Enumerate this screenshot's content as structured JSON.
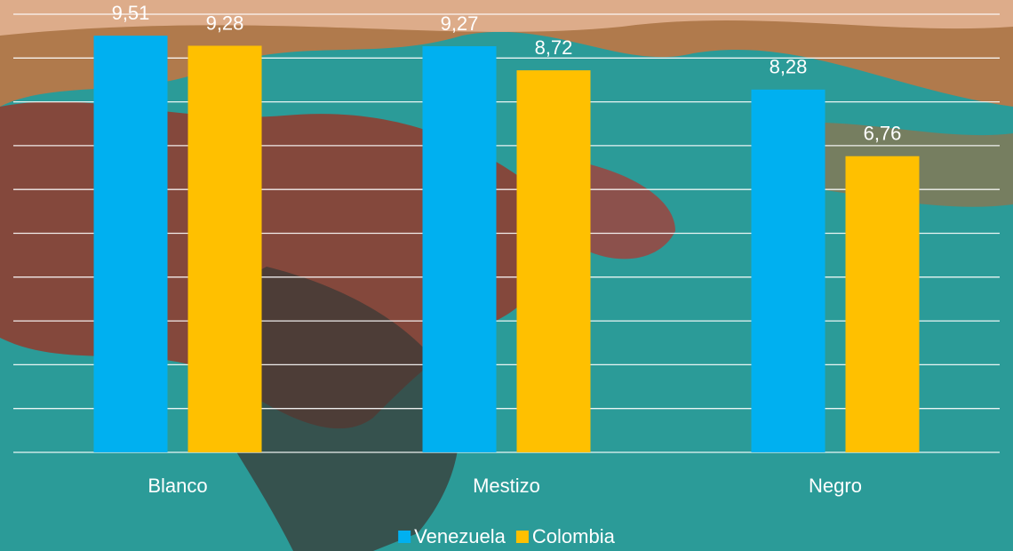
{
  "chart_data": {
    "type": "bar",
    "categories": [
      "Blanco",
      "Mestizo",
      "Negro"
    ],
    "series": [
      {
        "name": "Venezuela",
        "color": "#00b0f0",
        "values": [
          9.51,
          9.27,
          8.28
        ],
        "value_labels": [
          "9,51",
          "9,27",
          "8,28"
        ]
      },
      {
        "name": "Colombia",
        "color": "#ffc000",
        "values": [
          9.28,
          8.72,
          6.76
        ],
        "value_labels": [
          "9,28",
          "8,72",
          "6,76"
        ]
      }
    ],
    "ylim": [
      0,
      10
    ],
    "yticks": [
      0,
      1,
      2,
      3,
      4,
      5,
      6,
      7,
      8,
      9,
      10
    ],
    "grid": true,
    "legend": "bottom"
  }
}
